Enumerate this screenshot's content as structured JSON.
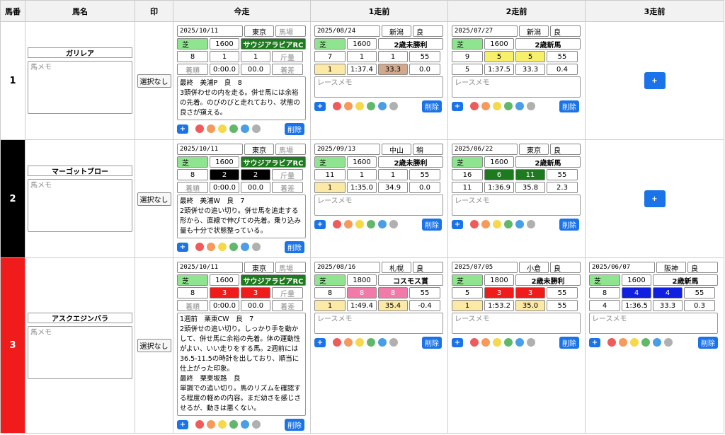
{
  "header": [
    "馬番",
    "馬名",
    "印",
    "今走",
    "1走前",
    "2走前",
    "3走前"
  ],
  "add_label": "+",
  "delete_label": "削除",
  "memo_colors": [
    "#ef5b5b",
    "#f59a5b",
    "#f5d94a",
    "#62b86a",
    "#4a9ee8",
    "#b0b0b0"
  ],
  "rows": [
    {
      "number": "1",
      "color": "#ffffff",
      "text_color": "#000000",
      "name": "ガリレア",
      "memo_placeholder": "馬メモ",
      "mark": "選択なし",
      "races": [
        {
          "date": "2025/10/11",
          "venue": "東京",
          "condition": "馬場",
          "surface": "芝",
          "distance": "1600",
          "race_name": "サウジアラビアRC",
          "race_color": "#1e7a1e",
          "fields": [
            "8",
            "1",
            "1",
            "斤量"
          ],
          "frame_color": "#ffffff",
          "frame_text": "#000000",
          "results": [
            "着順",
            "0:00.0",
            "00.0",
            "着差"
          ],
          "memo": "最終　美浦P　良　8\n3頭併わせの内を走る。併せ馬には余裕の先着。のびのびと走れており、状態の良さが窺える。"
        },
        {
          "date": "2025/08/24",
          "venue": "新潟",
          "condition": "良",
          "surface": "芝",
          "distance": "1600",
          "race_name": "2歳未勝利",
          "fields": [
            "7",
            "1",
            "1",
            "55"
          ],
          "frame_color": "#ffffff",
          "frame_text": "#000000",
          "results": [
            "1",
            "1:37.4",
            "33.3",
            "0.0"
          ],
          "finish_bg": "#fde9a6",
          "last3f_bg": "#d2a98c",
          "memo_placeholder": "レースメモ"
        },
        {
          "date": "2025/07/27",
          "venue": "新潟",
          "condition": "良",
          "surface": "芝",
          "distance": "1600",
          "race_name": "2歳新馬",
          "fields": [
            "9",
            "5",
            "5",
            "55"
          ],
          "frame_color": "#f7f06a",
          "frame_text": "#000000",
          "results": [
            "5",
            "1:37.5",
            "33.3",
            "0.4"
          ],
          "memo_placeholder": "レースメモ"
        },
        null
      ]
    },
    {
      "number": "2",
      "color": "#000000",
      "text_color": "#ffffff",
      "name": "マーゴットブロー",
      "memo_placeholder": "馬メモ",
      "mark": "選択なし",
      "races": [
        {
          "date": "2025/10/11",
          "venue": "東京",
          "condition": "馬場",
          "surface": "芝",
          "distance": "1600",
          "race_name": "サウジアラビアRC",
          "race_color": "#1e7a1e",
          "fields": [
            "8",
            "2",
            "2",
            "斤量"
          ],
          "frame_color": "#000000",
          "frame_text": "#ffffff",
          "results": [
            "着順",
            "0:00.0",
            "00.0",
            "着差"
          ],
          "memo": "最終　美浦W　良　7\n2頭併せの追い切り。併せ馬を追走する形から、直線で伸びての先着。乗り込み量も十分で状態整っている。"
        },
        {
          "date": "2025/09/13",
          "venue": "中山",
          "condition": "稍",
          "surface": "芝",
          "distance": "1600",
          "race_name": "2歳未勝利",
          "fields": [
            "11",
            "1",
            "1",
            "55"
          ],
          "frame_color": "#ffffff",
          "frame_text": "#000000",
          "results": [
            "1",
            "1:35.0",
            "34.9",
            "0.0"
          ],
          "finish_bg": "#fde9a6",
          "memo_placeholder": "レースメモ"
        },
        {
          "date": "2025/06/22",
          "venue": "東京",
          "condition": "良",
          "surface": "芝",
          "distance": "1600",
          "race_name": "2歳新馬",
          "fields": [
            "16",
            "6",
            "11",
            "55"
          ],
          "frame_color": "#1e7a1e",
          "frame_text": "#ffffff",
          "results": [
            "11",
            "1:36.9",
            "35.8",
            "2.3"
          ],
          "memo_placeholder": "レースメモ"
        },
        null
      ]
    },
    {
      "number": "3",
      "color": "#f01c1c",
      "text_color": "#ffffff",
      "name": "アスクエジンバラ",
      "memo_placeholder": "馬メモ",
      "mark": "選択なし",
      "races": [
        {
          "date": "2025/10/11",
          "venue": "東京",
          "condition": "馬場",
          "surface": "芝",
          "distance": "1600",
          "race_name": "サウジアラビアRC",
          "race_color": "#1e7a1e",
          "fields": [
            "8",
            "3",
            "3",
            "斤量"
          ],
          "frame_color": "#f01c1c",
          "frame_text": "#ffffff",
          "results": [
            "着順",
            "0:00.0",
            "00.0",
            "着差"
          ],
          "memo": "1週前　栗東CW　良　7\n2頭併せの追い切り。しっかり手を動かして、併せ馬に余裕の先着。体の運動性がよい、いい走りをする馬。2週前には36.5-11.5の時計を出しており、順当に仕上がった印象。\n最終　栗東坂路　良\n単調での追い切り。馬のリズムを確認する程度の軽めの内容。まだ幼さを感じさせるが、動きは悪くない。"
        },
        {
          "date": "2025/08/16",
          "venue": "札幌",
          "condition": "良",
          "surface": "芝",
          "distance": "1800",
          "race_name": "コスモス賞",
          "fields": [
            "8",
            "8",
            "8",
            "55"
          ],
          "frame_color": "#f27aa8",
          "frame_text": "#ffffff",
          "results": [
            "1",
            "1:49.4",
            "35.4",
            "-0.4"
          ],
          "finish_bg": "#fde9a6",
          "last3f_bg": "#fde9a6",
          "memo_placeholder": "レースメモ"
        },
        {
          "date": "2025/07/05",
          "venue": "小倉",
          "condition": "良",
          "surface": "芝",
          "distance": "1800",
          "race_name": "2歳未勝利",
          "fields": [
            "5",
            "3",
            "3",
            "55"
          ],
          "frame_color": "#f01c1c",
          "frame_text": "#ffffff",
          "results": [
            "1",
            "1:53.2",
            "35.0",
            "55"
          ],
          "finish_bg": "#fde9a6",
          "last3f_bg": "#fde9a6",
          "memo_placeholder": "レースメモ"
        },
        {
          "date": "2025/06/07",
          "venue": "阪神",
          "condition": "良",
          "surface": "芝",
          "distance": "1600",
          "race_name": "2歳新馬",
          "fields": [
            "8",
            "4",
            "4",
            "55"
          ],
          "frame_color": "#1020e0",
          "frame_text": "#ffffff",
          "results": [
            "4",
            "1:36.5",
            "33.3",
            "0.3"
          ],
          "memo_placeholder": "レースメモ"
        }
      ]
    }
  ]
}
